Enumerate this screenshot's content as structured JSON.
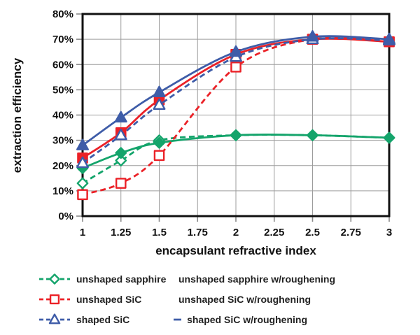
{
  "chart_data": {
    "type": "line",
    "title": "",
    "xlabel": "encapsulant refractive index",
    "ylabel": "extraction efficiency",
    "xlim": [
      1,
      3
    ],
    "ylim": [
      0,
      80
    ],
    "grid": true,
    "legend_position": "bottom",
    "x_ticks": [
      1,
      1.25,
      1.5,
      1.75,
      2,
      2.25,
      2.5,
      2.75,
      3
    ],
    "x_tick_labels": [
      "1",
      "1.25",
      "1.5",
      "1.75",
      "2",
      "2.25",
      "2.5",
      "2.75",
      "3"
    ],
    "y_ticks": [
      0,
      10,
      20,
      30,
      40,
      50,
      60,
      70,
      80
    ],
    "y_tick_labels": [
      "0%",
      "10%",
      "20%",
      "30%",
      "40%",
      "50%",
      "60%",
      "70%",
      "80%"
    ],
    "x": [
      1,
      1.25,
      1.5,
      2,
      2.5,
      3
    ],
    "series": [
      {
        "name": "unshaped sapphire",
        "values": [
          13,
          22,
          30,
          32,
          32,
          31
        ],
        "color": "#14A46B",
        "line": "dashed",
        "marker": "diamond",
        "marker_fill": "open"
      },
      {
        "name": "unshaped sapphire w/roughening",
        "values": [
          19,
          25,
          29,
          32,
          32,
          31
        ],
        "color": "#14A46B",
        "line": "solid",
        "marker": "diamond",
        "marker_fill": "filled"
      },
      {
        "name": "unshaped SiC",
        "values": [
          8.5,
          13,
          24,
          59,
          70,
          69
        ],
        "color": "#EB2127",
        "line": "dashed",
        "marker": "square",
        "marker_fill": "open"
      },
      {
        "name": "unshaped SiC w/roughening",
        "values": [
          23,
          33,
          46,
          64,
          70,
          69
        ],
        "color": "#EB2127",
        "line": "solid",
        "marker": "square",
        "marker_fill": "filled"
      },
      {
        "name": "shaped SiC",
        "values": [
          21,
          32,
          44,
          63,
          70,
          69.5
        ],
        "color": "#3E5CA8",
        "line": "dashed",
        "marker": "triangle",
        "marker_fill": "open"
      },
      {
        "name": "shaped SiC w/roughening",
        "values": [
          28,
          39,
          49,
          65,
          71,
          70
        ],
        "color": "#3E5CA8",
        "line": "solid",
        "marker": "triangle",
        "marker_fill": "filled"
      }
    ],
    "legend_columns": [
      [
        0,
        2,
        4
      ],
      [
        1,
        3,
        5
      ]
    ],
    "colors": {
      "green": "#14A46B",
      "red": "#EB2127",
      "blue": "#3E5CA8",
      "gridline": "#9c9c9c",
      "axis": "#111111",
      "background": "#ffffff"
    }
  }
}
